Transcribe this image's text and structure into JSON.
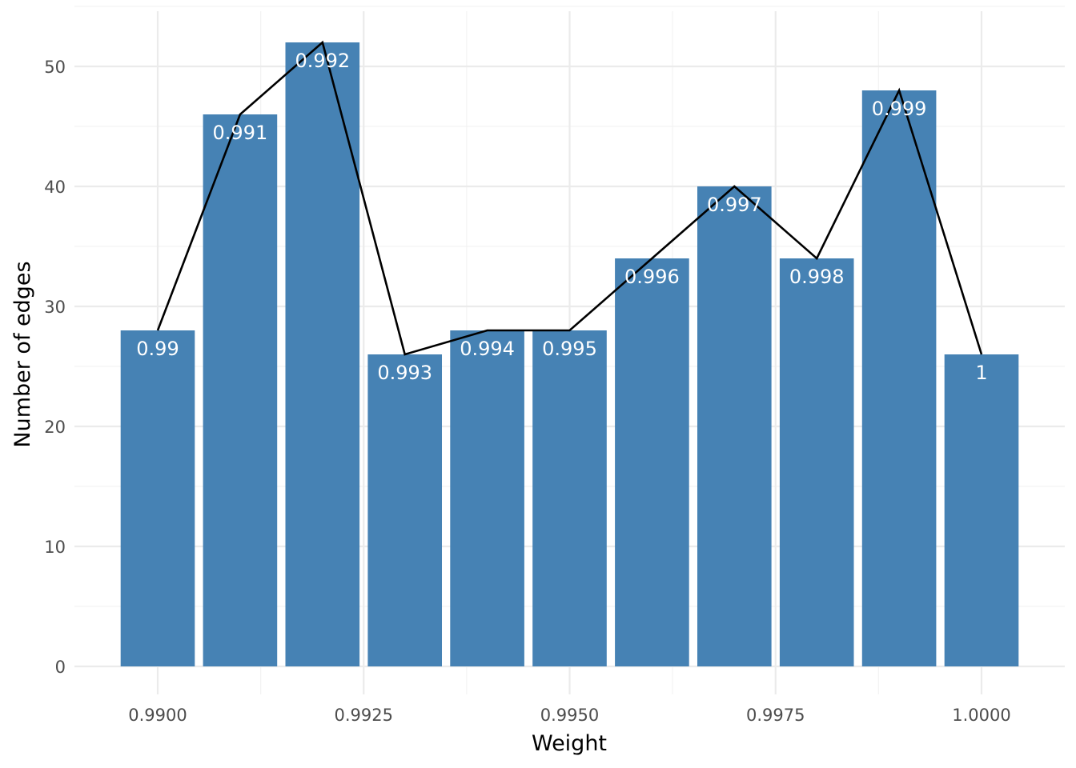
{
  "chart_data": {
    "type": "bar",
    "title": "",
    "xlabel": "Weight",
    "ylabel": "Number of edges",
    "x": [
      0.99,
      0.991,
      0.992,
      0.993,
      0.994,
      0.995,
      0.996,
      0.997,
      0.998,
      0.999,
      1.0
    ],
    "values": [
      28,
      46,
      52,
      26,
      28,
      28,
      34,
      40,
      34,
      48,
      26
    ],
    "bar_labels": [
      "0.99",
      "0.991",
      "0.992",
      "0.993",
      "0.994",
      "0.995",
      "0.996",
      "0.997",
      "0.998",
      "0.999",
      "1"
    ],
    "overlay_line": true,
    "xlim": [
      0.9895,
      1.0005
    ],
    "ylim": [
      0,
      55
    ],
    "x_ticks": [
      0.99,
      0.9925,
      0.995,
      0.9975,
      1.0
    ],
    "x_tick_labels": [
      "0.9900",
      "0.9925",
      "0.9950",
      "0.9975",
      "1.0000"
    ],
    "y_ticks": [
      0,
      10,
      20,
      30,
      40,
      50
    ],
    "y_tick_labels": [
      "0",
      "10",
      "20",
      "30",
      "40",
      "50"
    ],
    "grid": true,
    "bar_color": "#4682B4",
    "line_color": "#000000",
    "label_color": "#ffffff"
  }
}
